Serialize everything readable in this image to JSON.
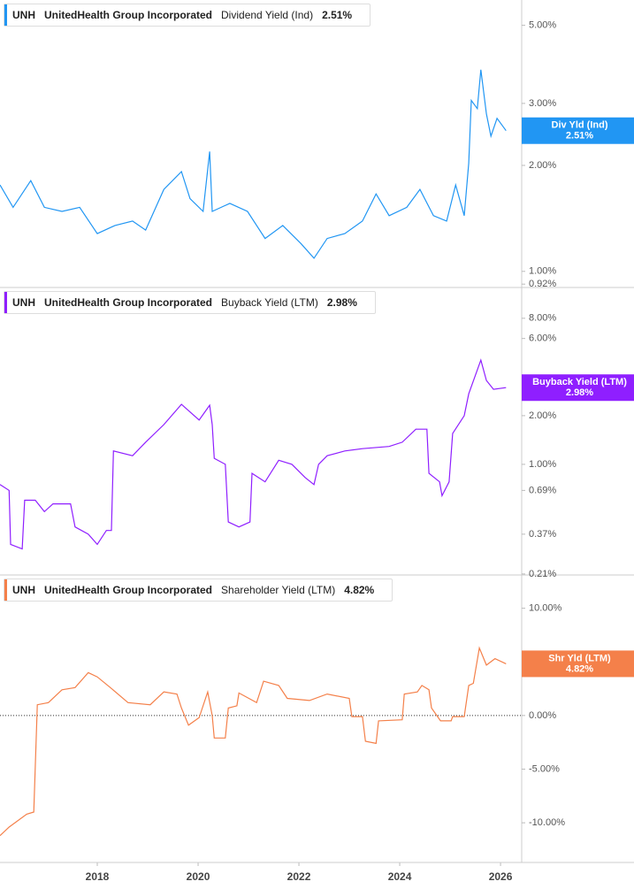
{
  "chart_data": [
    {
      "type": "line",
      "ticker": "UNH",
      "company": "UnitedHealth Group Incorporated",
      "current_label": "2.51%",
      "badge_label": "Div Yld (Ind)",
      "log_scale": true,
      "xlim": [
        2016.07,
        2026.42
      ],
      "ylim": [
        0.9,
        5.9
      ],
      "yticks": [
        {
          "value": 5,
          "label": "5.00%"
        },
        {
          "value": 3,
          "label": "3.00%"
        },
        {
          "value": 2,
          "label": "2.00%"
        },
        {
          "value": 1,
          "label": "1.00%"
        },
        {
          "value": 0.92,
          "label": "0.92%"
        }
      ],
      "series": [
        {
          "name": "Dividend Yield (Ind)",
          "color": "#2196f3",
          "x": [
            2016.07,
            2016.33,
            2016.68,
            2016.95,
            2017.3,
            2017.65,
            2018.0,
            2018.35,
            2018.7,
            2018.96,
            2019.32,
            2019.67,
            2019.84,
            2020.1,
            2020.23,
            2020.28,
            2020.63,
            2020.98,
            2021.33,
            2021.68,
            2022.04,
            2022.3,
            2022.56,
            2022.91,
            2023.26,
            2023.53,
            2023.79,
            2024.14,
            2024.4,
            2024.67,
            2024.93,
            2025.11,
            2025.28,
            2025.37,
            2025.42,
            2025.54,
            2025.61,
            2025.72,
            2025.81,
            2025.93,
            2026.11
          ],
          "values": [
            1.76,
            1.52,
            1.81,
            1.52,
            1.48,
            1.52,
            1.28,
            1.35,
            1.39,
            1.31,
            1.71,
            1.92,
            1.61,
            1.48,
            2.19,
            1.48,
            1.56,
            1.48,
            1.24,
            1.35,
            1.2,
            1.09,
            1.24,
            1.28,
            1.39,
            1.66,
            1.44,
            1.52,
            1.71,
            1.44,
            1.39,
            1.76,
            1.44,
            2.03,
            3.06,
            2.9,
            3.74,
            2.8,
            2.42,
            2.72,
            2.51
          ]
        }
      ]
    },
    {
      "type": "line",
      "ticker": "UNH",
      "company": "UnitedHealth Group Incorporated",
      "current_label": "2.98%",
      "badge_label": "Buyback Yield (LTM)",
      "log_scale": true,
      "xlim": [
        2016.07,
        2026.42
      ],
      "ylim": [
        0.207,
        12.4
      ],
      "yticks": [
        {
          "value": 8,
          "label": "8.00%"
        },
        {
          "value": 6,
          "label": "6.00%"
        },
        {
          "value": 2,
          "label": "2.00%"
        },
        {
          "value": 1,
          "label": "1.00%"
        },
        {
          "value": 0.69,
          "label": "0.69%"
        },
        {
          "value": 0.37,
          "label": "0.37%"
        },
        {
          "value": 0.21,
          "label": "0.21%"
        }
      ],
      "series": [
        {
          "name": "Buyback Yield (LTM)",
          "color": "#8f1fff",
          "x": [
            2016.07,
            2016.25,
            2016.28,
            2016.51,
            2016.56,
            2016.77,
            2016.95,
            2017.12,
            2017.47,
            2017.56,
            2017.82,
            2018.0,
            2018.18,
            2018.28,
            2018.32,
            2018.7,
            2018.96,
            2019.32,
            2019.67,
            2020.02,
            2020.23,
            2020.28,
            2020.32,
            2020.54,
            2020.6,
            2020.81,
            2021.03,
            2021.07,
            2021.33,
            2021.6,
            2021.86,
            2022.12,
            2022.3,
            2022.39,
            2022.56,
            2022.91,
            2023.26,
            2023.79,
            2024.05,
            2024.32,
            2024.54,
            2024.58,
            2024.79,
            2024.84,
            2024.98,
            2025.05,
            2025.28,
            2025.37,
            2025.61,
            2025.72,
            2025.86,
            2026.11
          ],
          "values": [
            0.75,
            0.69,
            0.32,
            0.3,
            0.6,
            0.6,
            0.51,
            0.57,
            0.57,
            0.41,
            0.37,
            0.32,
            0.39,
            0.39,
            1.21,
            1.13,
            1.37,
            1.76,
            2.35,
            1.88,
            2.32,
            1.76,
            1.09,
            1.0,
            0.44,
            0.41,
            0.44,
            0.88,
            0.78,
            1.06,
            1.0,
            0.83,
            0.75,
            1.0,
            1.13,
            1.21,
            1.25,
            1.29,
            1.37,
            1.65,
            1.65,
            0.88,
            0.78,
            0.64,
            0.78,
            1.55,
            2.0,
            2.73,
            4.41,
            3.3,
            2.91,
            2.98
          ]
        }
      ]
    },
    {
      "type": "line",
      "ticker": "UNH",
      "company": "UnitedHealth Group Incorporated",
      "current_label": "4.82%",
      "badge_label": "Shr Yld (LTM)",
      "log_scale": false,
      "hline": 0,
      "xlim": [
        2016.07,
        2026.42
      ],
      "ylim": [
        -13.7,
        13.1
      ],
      "yticks": [
        {
          "value": 10,
          "label": "10.00%"
        },
        {
          "value": 5,
          "label": "5.00%"
        },
        {
          "value": 0,
          "label": "0.00%"
        },
        {
          "value": -5,
          "label": "-5.00%"
        },
        {
          "value": -10,
          "label": "-10.00%"
        }
      ],
      "xticks": [
        2018,
        2020,
        2022,
        2024,
        2026
      ],
      "series": [
        {
          "name": "Shareholder Yield (LTM)",
          "color": "#f4804a",
          "x": [
            2016.07,
            2016.25,
            2016.6,
            2016.74,
            2016.81,
            2017.03,
            2017.3,
            2017.56,
            2017.82,
            2018.0,
            2018.26,
            2018.61,
            2019.05,
            2019.32,
            2019.58,
            2019.67,
            2019.81,
            2020.02,
            2020.19,
            2020.28,
            2020.32,
            2020.54,
            2020.6,
            2020.77,
            2020.81,
            2021.16,
            2021.3,
            2021.6,
            2021.77,
            2022.21,
            2022.56,
            2023.0,
            2023.05,
            2023.26,
            2023.32,
            2023.53,
            2023.58,
            2024.05,
            2024.09,
            2024.35,
            2024.44,
            2024.58,
            2024.63,
            2024.81,
            2025.02,
            2025.05,
            2025.28,
            2025.37,
            2025.46,
            2025.58,
            2025.72,
            2025.89,
            2026.11
          ],
          "values": [
            -11.2,
            -10.4,
            -9.2,
            -9.0,
            1.0,
            1.2,
            2.4,
            2.6,
            4.0,
            3.6,
            2.6,
            1.2,
            1.0,
            2.2,
            2.0,
            0.7,
            -0.9,
            -0.2,
            2.2,
            0.0,
            -2.1,
            -2.1,
            0.7,
            0.9,
            2.1,
            1.2,
            3.2,
            2.8,
            1.6,
            1.4,
            2.0,
            1.6,
            -0.1,
            -0.1,
            -2.4,
            -2.6,
            -0.5,
            -0.4,
            2.0,
            2.2,
            2.8,
            2.4,
            0.7,
            -0.5,
            -0.5,
            -0.1,
            -0.1,
            2.8,
            3.0,
            6.3,
            4.7,
            5.3,
            4.82
          ]
        }
      ]
    }
  ]
}
